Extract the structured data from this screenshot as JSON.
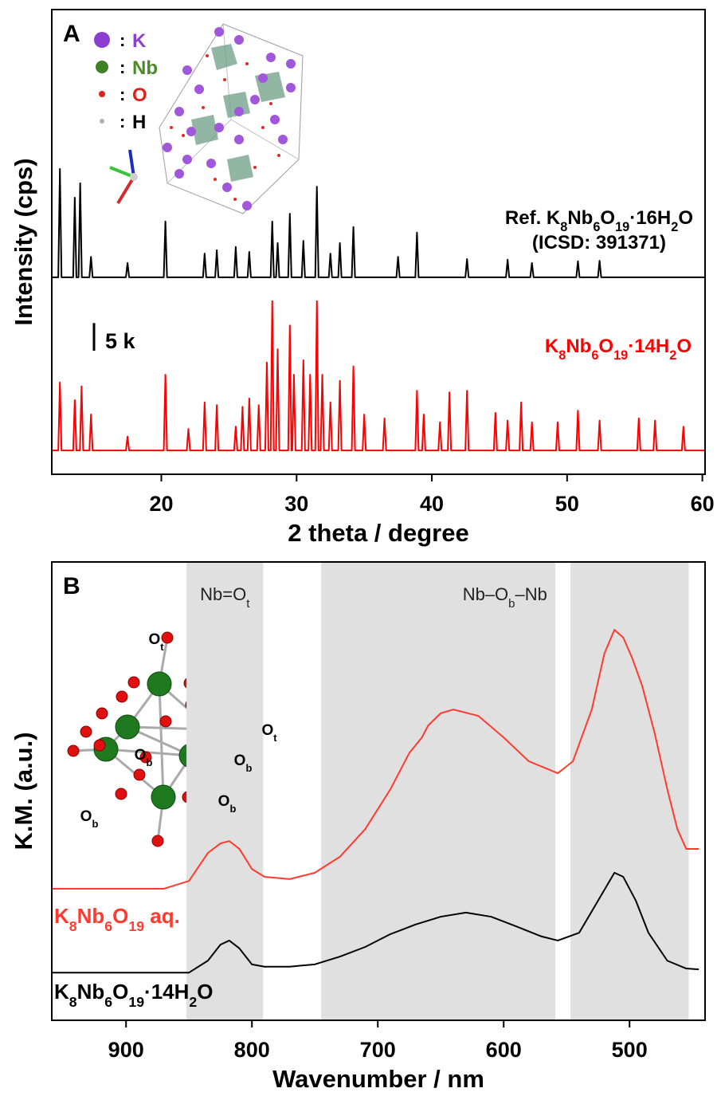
{
  "chart_data": [
    {
      "type": "line",
      "panel": "A",
      "xlabel": "2 theta / degree",
      "ylabel": "Intensity (cps)",
      "xlim": [
        11.9,
        60.2
      ],
      "xticks": [
        20,
        30,
        40,
        50,
        60
      ],
      "ylim": [
        0,
        84000
      ],
      "scale_bar": {
        "value": 5000,
        "label": "5 k"
      },
      "separator": ":",
      "legend": [
        {
          "symbol": "K",
          "color": "#8a3fd0",
          "label_color": "#8a3fd0"
        },
        {
          "symbol": "Nb",
          "color": "#3f7f25",
          "label_color": "#4a8a2a"
        },
        {
          "symbol": "O",
          "color": "#e0201b",
          "label_color": "#e0201b"
        },
        {
          "symbol": "H",
          "color": "#b0b0b0",
          "label_color": "#000000"
        }
      ],
      "series": [
        {
          "name": [
            "Ref. K",
            "8",
            "Nb",
            "6",
            "O",
            "19",
            "·16H",
            "2",
            "O"
          ],
          "reference": "(ICSD: 391371)",
          "color": "#000000",
          "x": [
            11.9,
            12.38,
            12.5,
            12.62,
            13.48,
            13.6,
            13.72,
            13.88,
            14.0,
            14.12,
            14.68,
            14.8,
            14.92,
            17.38,
            17.5,
            17.62,
            20.18,
            20.3,
            20.42,
            23.08,
            23.2,
            23.32,
            23.98,
            24.1,
            24.22,
            25.38,
            25.5,
            25.62,
            26.38,
            26.5,
            26.62,
            28.08,
            28.2,
            28.32,
            28.48,
            28.6,
            28.72,
            29.38,
            29.5,
            29.62,
            30.38,
            30.5,
            30.62,
            31.38,
            31.5,
            31.62,
            32.38,
            32.5,
            32.62,
            33.08,
            33.2,
            33.32,
            34.08,
            34.2,
            34.32,
            37.38,
            37.5,
            37.62,
            38.78,
            38.9,
            39.02,
            42.48,
            42.6,
            42.72,
            45.48,
            45.6,
            45.72,
            47.28,
            47.4,
            47.52,
            50.68,
            50.8,
            50.92,
            52.28,
            52.4,
            52.52,
            60.2
          ],
          "values": [
            35600,
            35600,
            55200,
            35600,
            35600,
            50000,
            35600,
            35600,
            52600,
            35600,
            35600,
            39300,
            35600,
            35600,
            38200,
            35600,
            35600,
            45700,
            35600,
            35600,
            39900,
            35600,
            35600,
            40500,
            35600,
            35600,
            41100,
            35600,
            35600,
            40200,
            35600,
            35600,
            45700,
            35600,
            35600,
            41800,
            35600,
            35600,
            47100,
            35600,
            35600,
            42200,
            35600,
            35600,
            52000,
            35600,
            35600,
            39900,
            35600,
            35600,
            41800,
            35600,
            35600,
            44700,
            35600,
            35600,
            39300,
            35600,
            35600,
            43700,
            35600,
            35600,
            38900,
            35600,
            35600,
            38800,
            35600,
            35600,
            38200,
            35600,
            35600,
            38500,
            35600,
            35600,
            38600,
            35600,
            35600
          ]
        },
        {
          "name": [
            "K",
            "8",
            "Nb",
            "6",
            "O",
            "19",
            "·14H",
            "2",
            "O"
          ],
          "color": "#ff0000",
          "x": [
            11.9,
            12.38,
            12.5,
            12.62,
            13.48,
            13.6,
            13.72,
            13.98,
            14.1,
            14.22,
            14.68,
            14.8,
            14.92,
            17.38,
            17.5,
            17.62,
            20.18,
            20.3,
            20.42,
            21.88,
            22.0,
            22.12,
            23.08,
            23.2,
            23.32,
            23.98,
            24.1,
            24.22,
            25.38,
            25.5,
            25.62,
            25.88,
            26.0,
            26.12,
            26.38,
            26.5,
            26.62,
            27.08,
            27.2,
            27.32,
            27.68,
            27.8,
            27.92,
            28.08,
            28.2,
            28.32,
            28.48,
            28.6,
            28.72,
            29.38,
            29.5,
            29.62,
            29.68,
            29.8,
            29.92,
            30.38,
            30.5,
            30.62,
            30.88,
            31.0,
            31.12,
            31.38,
            31.5,
            31.62,
            31.78,
            31.9,
            32.02,
            32.38,
            32.5,
            32.62,
            33.08,
            33.2,
            33.32,
            34.08,
            34.2,
            34.32,
            34.88,
            35.0,
            35.12,
            36.38,
            36.5,
            36.62,
            38.78,
            38.9,
            39.02,
            39.28,
            39.4,
            39.52,
            40.48,
            40.6,
            40.72,
            41.18,
            41.3,
            41.42,
            42.48,
            42.6,
            42.72,
            44.58,
            44.7,
            44.82,
            45.48,
            45.6,
            45.72,
            46.48,
            46.6,
            46.72,
            47.28,
            47.4,
            47.52,
            49.18,
            49.3,
            49.42,
            50.68,
            50.8,
            50.92,
            52.28,
            52.4,
            52.52,
            55.18,
            55.3,
            55.42,
            56.38,
            56.5,
            56.62,
            58.48,
            58.6,
            58.72,
            60.2
          ],
          "values": [
            4300,
            4300,
            16600,
            4300,
            4300,
            13400,
            4300,
            4300,
            15900,
            4300,
            4300,
            10800,
            4300,
            4300,
            6800,
            4300,
            4300,
            18000,
            4300,
            4300,
            8200,
            4300,
            4300,
            13000,
            4300,
            4300,
            12500,
            4300,
            4300,
            8600,
            4300,
            4300,
            12200,
            4300,
            4300,
            13700,
            4300,
            4300,
            12500,
            4300,
            4300,
            20200,
            4300,
            4300,
            31300,
            4300,
            4300,
            22600,
            4300,
            4300,
            26900,
            4300,
            4300,
            18000,
            4300,
            4300,
            20600,
            4300,
            4300,
            18000,
            4300,
            4300,
            31300,
            4300,
            4300,
            18000,
            4300,
            4300,
            13000,
            4300,
            4300,
            16900,
            4300,
            4300,
            19500,
            4300,
            4300,
            10800,
            4300,
            4300,
            10100,
            4300,
            4300,
            15100,
            4300,
            4300,
            10800,
            4300,
            4300,
            9400,
            4300,
            4300,
            14800,
            4300,
            4300,
            15100,
            4300,
            4300,
            11100,
            4300,
            4300,
            9700,
            4300,
            4300,
            13000,
            4300,
            4300,
            9400,
            4300,
            4300,
            9400,
            4300,
            4300,
            11500,
            4300,
            4300,
            9700,
            4300,
            4300,
            10100,
            4300,
            4300,
            9700,
            4300,
            4300,
            8600,
            4300,
            4300
          ]
        }
      ]
    },
    {
      "type": "line",
      "panel": "B",
      "xlabel": "Wavenumber / nm",
      "ylabel": "K.M. (a.u.)",
      "xlim": [
        959,
        440
      ],
      "xticks": [
        900,
        800,
        700,
        600,
        500
      ],
      "ylim": [
        0,
        1
      ],
      "bands": [
        {
          "range": [
            852,
            791
          ],
          "label": [
            "Nb=O",
            "t"
          ]
        },
        {
          "range": [
            745,
            559
          ],
          "label": [
            "Nb–O",
            "b",
            "–Nb"
          ]
        },
        {
          "range": [
            547,
            453
          ]
        }
      ],
      "band_color": "#e0e0e0",
      "annotations": [
        [
          "O",
          "t"
        ],
        [
          "O",
          "t"
        ],
        [
          "O",
          "b"
        ],
        [
          "O",
          "b"
        ],
        [
          "O",
          "b"
        ],
        [
          "O",
          "b"
        ]
      ],
      "series": [
        {
          "name": [
            "K",
            "8",
            "Nb",
            "6",
            "O",
            "19",
            " aq."
          ],
          "color": "#ff3b30",
          "x": [
            959,
            870,
            850,
            835,
            825,
            818,
            810,
            800,
            790,
            770,
            750,
            730,
            710,
            690,
            675,
            665,
            660,
            650,
            640,
            620,
            600,
            580,
            557,
            545,
            530,
            520,
            512,
            505,
            498,
            490,
            480,
            470,
            462,
            455,
            445
          ],
          "values": [
            0.287,
            0.287,
            0.304,
            0.365,
            0.386,
            0.391,
            0.374,
            0.33,
            0.313,
            0.308,
            0.322,
            0.357,
            0.417,
            0.504,
            0.583,
            0.617,
            0.643,
            0.67,
            0.678,
            0.664,
            0.617,
            0.565,
            0.539,
            0.565,
            0.678,
            0.8,
            0.852,
            0.835,
            0.791,
            0.73,
            0.626,
            0.504,
            0.417,
            0.374,
            0.374
          ]
        },
        {
          "name": [
            "K",
            "8",
            "Nb",
            "6",
            "O",
            "19",
            "·14H",
            "2",
            "O"
          ],
          "color": "#000000",
          "x": [
            959,
            850,
            835,
            825,
            818,
            810,
            800,
            790,
            770,
            750,
            730,
            710,
            690,
            670,
            650,
            630,
            610,
            590,
            570,
            557,
            540,
            525,
            512,
            505,
            495,
            485,
            470,
            455,
            445
          ],
          "values": [
            0.104,
            0.104,
            0.13,
            0.165,
            0.174,
            0.157,
            0.122,
            0.117,
            0.117,
            0.122,
            0.139,
            0.16,
            0.188,
            0.209,
            0.226,
            0.235,
            0.226,
            0.205,
            0.183,
            0.174,
            0.191,
            0.261,
            0.322,
            0.313,
            0.261,
            0.191,
            0.13,
            0.113,
            0.111
          ]
        }
      ]
    }
  ]
}
